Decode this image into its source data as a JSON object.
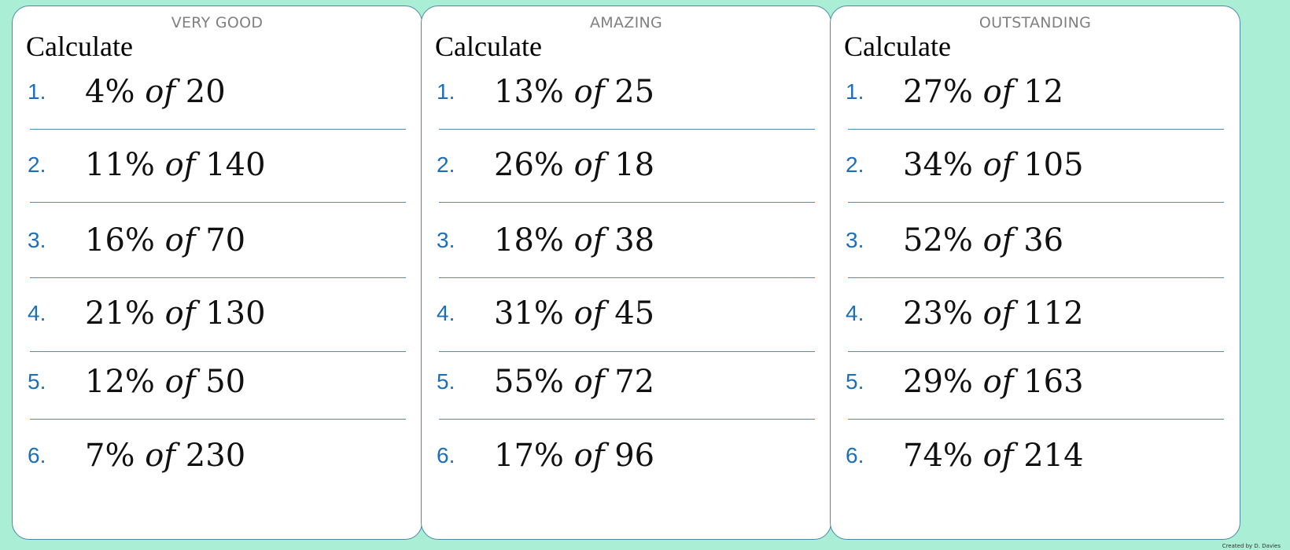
{
  "cards": [
    {
      "title": "VERY GOOD",
      "instruction": "Calculate",
      "questions": [
        {
          "num": "1.",
          "percent": "4%",
          "of": "of",
          "amount": "20"
        },
        {
          "num": "2.",
          "percent": "11%",
          "of": "of",
          "amount": "140"
        },
        {
          "num": "3.",
          "percent": "16%",
          "of": "of",
          "amount": "70"
        },
        {
          "num": "4.",
          "percent": "21%",
          "of": "of",
          "amount": "130"
        },
        {
          "num": "5.",
          "percent": "12%",
          "of": "of",
          "amount": "50"
        },
        {
          "num": "6.",
          "percent": "7%",
          "of": "of",
          "amount": "230"
        }
      ]
    },
    {
      "title": "AMAZING",
      "instruction": "Calculate",
      "questions": [
        {
          "num": "1.",
          "percent": "13%",
          "of": "of",
          "amount": "25"
        },
        {
          "num": "2.",
          "percent": "26%",
          "of": "of",
          "amount": "18"
        },
        {
          "num": "3.",
          "percent": "18%",
          "of": "of",
          "amount": "38"
        },
        {
          "num": "4.",
          "percent": "31%",
          "of": "of",
          "amount": "45"
        },
        {
          "num": "5.",
          "percent": "55%",
          "of": "of",
          "amount": "72"
        },
        {
          "num": "6.",
          "percent": "17%",
          "of": "of",
          "amount": "96"
        }
      ]
    },
    {
      "title": "OUTSTANDING",
      "instruction": "Calculate",
      "questions": [
        {
          "num": "1.",
          "percent": "27%",
          "of": "of",
          "amount": "12"
        },
        {
          "num": "2.",
          "percent": "34%",
          "of": "of",
          "amount": "105"
        },
        {
          "num": "3.",
          "percent": "52%",
          "of": "of",
          "amount": "36"
        },
        {
          "num": "4.",
          "percent": "23%",
          "of": "of",
          "amount": "112"
        },
        {
          "num": "5.",
          "percent": "29%",
          "of": "of",
          "amount": "163"
        },
        {
          "num": "6.",
          "percent": "74%",
          "of": "of",
          "amount": "214"
        }
      ]
    }
  ],
  "credit": "Created by D. Davies",
  "colors": {
    "background": "#aaeed6",
    "card_border": "#4a8aa6",
    "number": "#1f6fb8",
    "divider": "#4a8fb6",
    "title": "#808080"
  }
}
